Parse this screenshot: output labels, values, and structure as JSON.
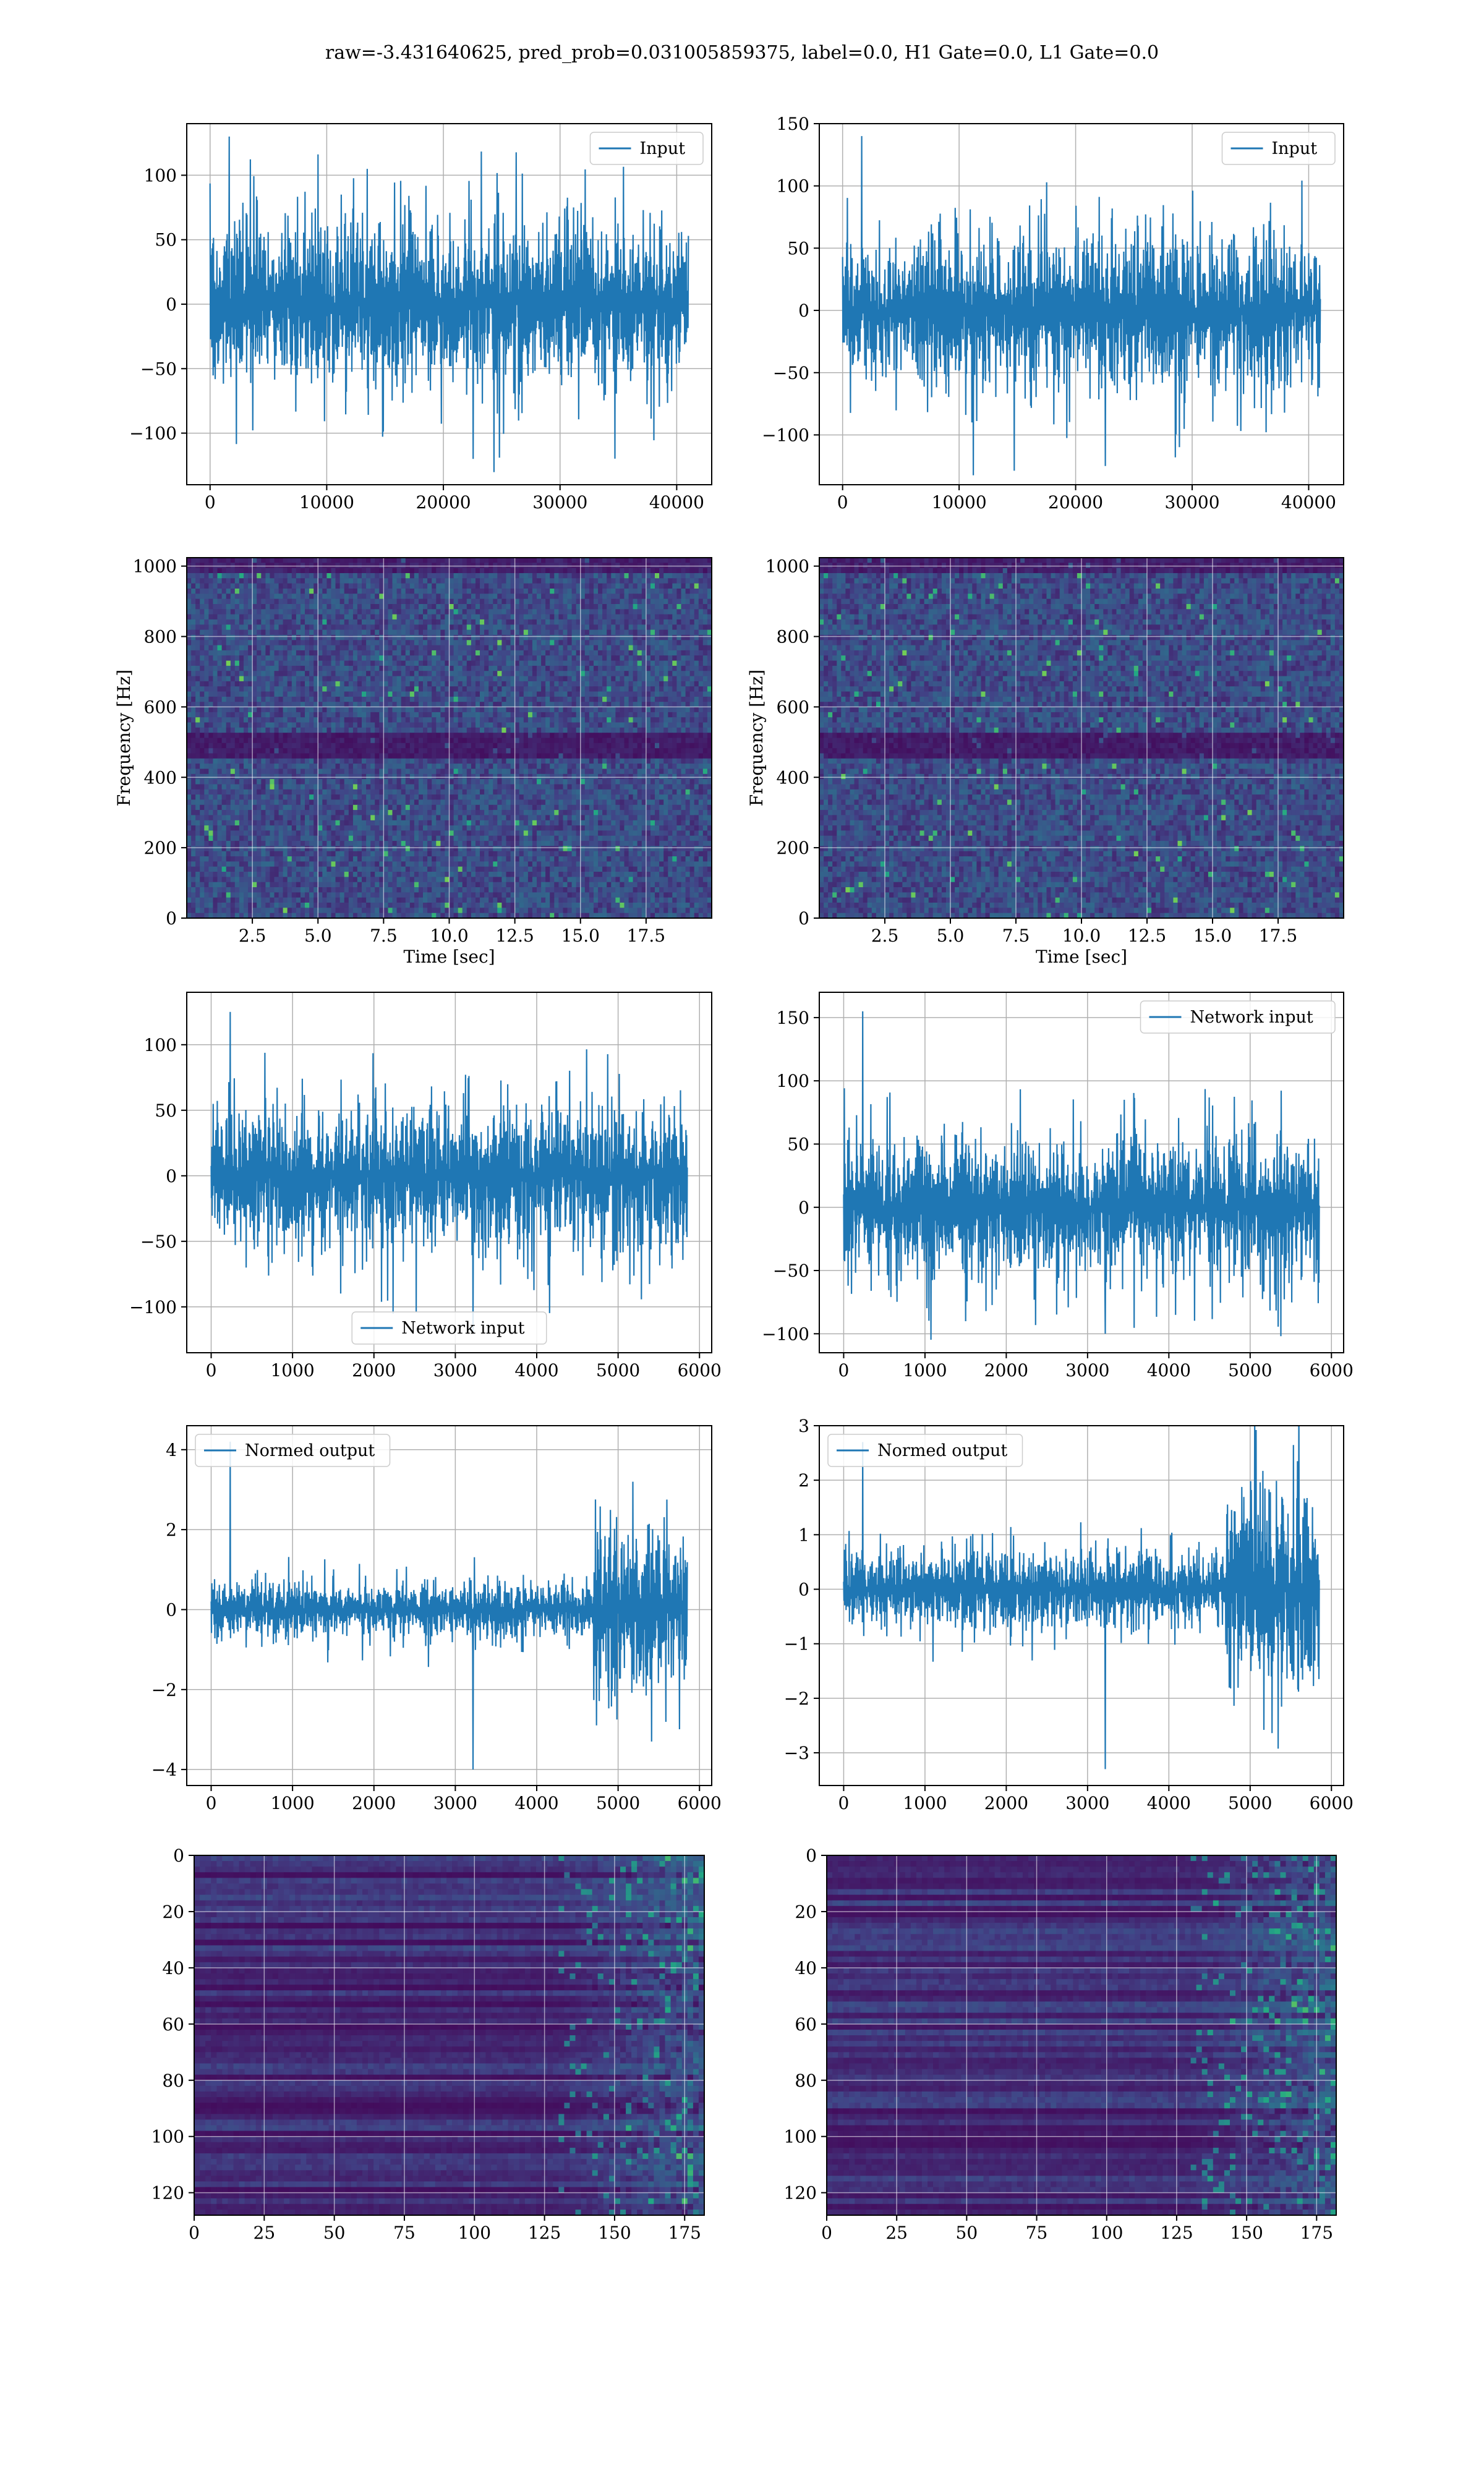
{
  "suptitle": "raw=-3.431640625, pred_prob=0.031005859375, label=0.0, H1 Gate=0.0, L1 Gate=0.0",
  "colors": {
    "line": "#1f77b4",
    "grid": "#b0b0b0",
    "viridis_low": "#440154",
    "viridis_high": "#fde725"
  },
  "chart_data": [
    {
      "id": "h1-input",
      "type": "line",
      "title": "",
      "series": [
        {
          "name": "Input",
          "amplitude_typical": 45,
          "peaks": [
            130,
            -120
          ]
        }
      ],
      "xlim": [
        -2000,
        43000
      ],
      "ylim": [
        -140,
        140
      ],
      "x_extent": [
        0,
        41000
      ],
      "xticks": [
        0,
        10000,
        20000,
        30000,
        40000
      ],
      "yticks": [
        -100,
        -50,
        0,
        50,
        100
      ],
      "xlabel": "",
      "ylabel": "",
      "grid": true,
      "legend": "upper right"
    },
    {
      "id": "l1-input",
      "type": "line",
      "title": "",
      "series": [
        {
          "name": "Input",
          "amplitude_typical": 45,
          "peaks": [
            140,
            -125
          ]
        }
      ],
      "xlim": [
        -2000,
        43000
      ],
      "ylim": [
        -140,
        150
      ],
      "x_extent": [
        0,
        41000
      ],
      "xticks": [
        0,
        10000,
        20000,
        30000,
        40000
      ],
      "yticks": [
        -100,
        -50,
        0,
        50,
        100,
        150
      ],
      "xlabel": "",
      "ylabel": "",
      "grid": true,
      "legend": "upper right"
    },
    {
      "id": "h1-spectrogram",
      "type": "heatmap",
      "title": "",
      "xlim": [
        0,
        20
      ],
      "ylim": [
        0,
        1024
      ],
      "xticks": [
        2.5,
        5.0,
        7.5,
        10.0,
        12.5,
        15.0,
        17.5
      ],
      "yticks": [
        0,
        200,
        400,
        600,
        800,
        1000
      ],
      "xticklabels": [
        "2.5",
        "5.0",
        "7.5",
        "10.0",
        "12.5",
        "15.0",
        "17.5"
      ],
      "xlabel": "Time [sec]",
      "ylabel": "Frequency [Hz]",
      "grid": true,
      "colormap": "viridis"
    },
    {
      "id": "l1-spectrogram",
      "type": "heatmap",
      "title": "",
      "xlim": [
        0,
        20
      ],
      "ylim": [
        0,
        1024
      ],
      "xticks": [
        2.5,
        5.0,
        7.5,
        10.0,
        12.5,
        15.0,
        17.5
      ],
      "yticks": [
        0,
        200,
        400,
        600,
        800,
        1000
      ],
      "xticklabels": [
        "2.5",
        "5.0",
        "7.5",
        "10.0",
        "12.5",
        "15.0",
        "17.5"
      ],
      "xlabel": "Time [sec]",
      "ylabel": "Frequency [Hz]",
      "grid": true,
      "colormap": "viridis"
    },
    {
      "id": "h1-network-input",
      "type": "line",
      "title": "",
      "series": [
        {
          "name": "Network input",
          "amplitude_typical": 40,
          "peaks": [
            125,
            -120
          ]
        }
      ],
      "xlim": [
        -300,
        6150
      ],
      "ylim": [
        -135,
        140
      ],
      "x_extent": [
        0,
        5850
      ],
      "xticks": [
        0,
        1000,
        2000,
        3000,
        4000,
        5000,
        6000
      ],
      "yticks": [
        -100,
        -50,
        0,
        50,
        100
      ],
      "xlabel": "",
      "ylabel": "",
      "grid": true,
      "legend": "lower center"
    },
    {
      "id": "l1-network-input",
      "type": "line",
      "title": "",
      "series": [
        {
          "name": "Network input",
          "amplitude_typical": 40,
          "peaks": [
            155,
            -100
          ]
        }
      ],
      "xlim": [
        -300,
        6150
      ],
      "ylim": [
        -115,
        170
      ],
      "x_extent": [
        0,
        5850
      ],
      "xticks": [
        0,
        1000,
        2000,
        3000,
        4000,
        5000,
        6000
      ],
      "yticks": [
        -100,
        -50,
        0,
        50,
        100,
        150
      ],
      "xlabel": "",
      "ylabel": "",
      "grid": true,
      "legend": "upper right"
    },
    {
      "id": "h1-normed-output",
      "type": "line",
      "title": "",
      "series": [
        {
          "name": "Normed output",
          "amplitude_typical": 0.5,
          "late_amplitude": 1.6,
          "peaks": [
            4.2,
            -4.0
          ]
        }
      ],
      "xlim": [
        -300,
        6150
      ],
      "ylim": [
        -4.4,
        4.6
      ],
      "x_extent": [
        0,
        5850
      ],
      "xticks": [
        0,
        1000,
        2000,
        3000,
        4000,
        5000,
        6000
      ],
      "yticks": [
        -4,
        -2,
        0,
        2,
        4
      ],
      "xlabel": "",
      "ylabel": "",
      "grid": true,
      "legend": "upper left"
    },
    {
      "id": "l1-normed-output",
      "type": "line",
      "title": "",
      "series": [
        {
          "name": "Normed output",
          "amplitude_typical": 0.5,
          "late_amplitude": 1.4,
          "peaks": [
            2.7,
            -3.3
          ]
        }
      ],
      "xlim": [
        -300,
        6150
      ],
      "ylim": [
        -3.6,
        3.0
      ],
      "x_extent": [
        0,
        5850
      ],
      "xticks": [
        0,
        1000,
        2000,
        3000,
        4000,
        5000,
        6000
      ],
      "yticks": [
        -3,
        -2,
        -1,
        0,
        1,
        2,
        3
      ],
      "xlabel": "",
      "ylabel": "",
      "grid": true,
      "legend": "upper left"
    },
    {
      "id": "h1-latent",
      "type": "heatmap",
      "title": "",
      "xlim": [
        0,
        182
      ],
      "ylim": [
        128,
        0
      ],
      "xticks": [
        0,
        25,
        50,
        75,
        100,
        125,
        150,
        175
      ],
      "yticks": [
        0,
        20,
        40,
        60,
        80,
        100,
        120
      ],
      "xlabel": "",
      "ylabel": "",
      "grid": true,
      "colormap": "viridis"
    },
    {
      "id": "l1-latent",
      "type": "heatmap",
      "title": "",
      "xlim": [
        0,
        182
      ],
      "ylim": [
        128,
        0
      ],
      "xticks": [
        0,
        25,
        50,
        75,
        100,
        125,
        150,
        175
      ],
      "yticks": [
        0,
        20,
        40,
        60,
        80,
        100,
        120
      ],
      "xlabel": "",
      "ylabel": "",
      "grid": true,
      "colormap": "viridis"
    }
  ]
}
